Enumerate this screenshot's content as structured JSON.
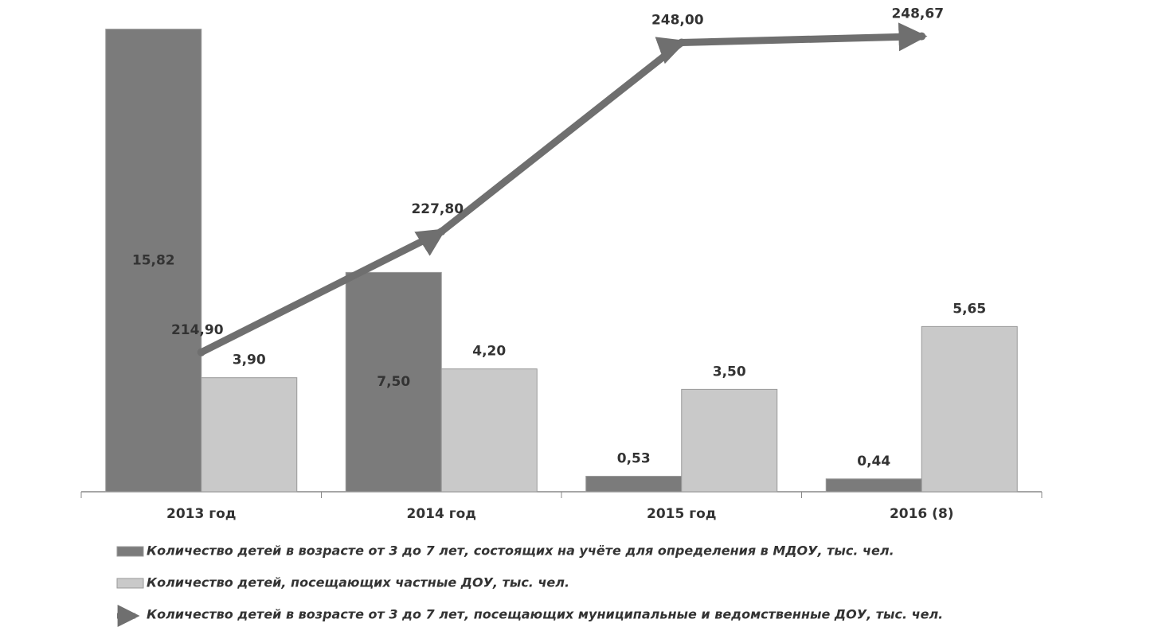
{
  "chart_data": {
    "type": "bar",
    "categories": [
      "2013 год",
      "2014 год",
      "2015 год",
      "2016 (8)"
    ],
    "ylim": [
      0,
      16
    ],
    "y2lim": [
      200,
      250
    ],
    "series": [
      {
        "name": "Количество детей в возрасте от 3 до 7 лет, состоящих на учёте для определения в МДОУ, тыс. чел.",
        "color": "#7b7b7b",
        "values": [
          15.82,
          7.5,
          0.53,
          0.44
        ],
        "value_labels": [
          "15,82",
          "7,50",
          "0,53",
          "0,44"
        ]
      },
      {
        "name": "Количество детей, посещающих частные ДОУ, тыс. чел.",
        "color": "#c9c9c9",
        "values": [
          3.9,
          4.2,
          3.5,
          5.65
        ],
        "value_labels": [
          "3,90",
          "4,20",
          "3,50",
          "5,65"
        ]
      },
      {
        "name": "Количество детей в возрасте от 3 до 7 лет, посещающих муниципальные и ведомственные ДОУ, тыс. чел.",
        "type": "line",
        "axis": "y2",
        "color": "#6f6f6f",
        "values": [
          214.9,
          227.8,
          248.0,
          248.67
        ],
        "value_labels": [
          "214,90",
          "227,80",
          "248,00",
          "248,67"
        ]
      }
    ]
  }
}
